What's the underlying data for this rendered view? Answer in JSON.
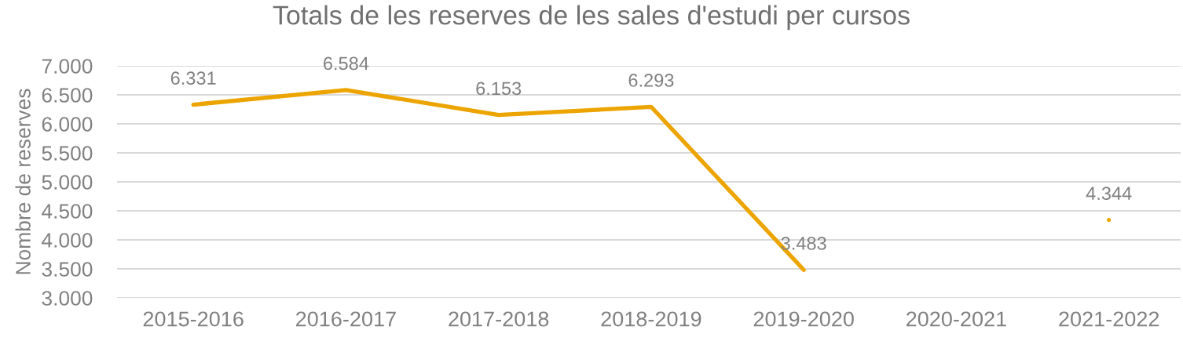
{
  "chart_data": {
    "type": "line",
    "title": "Totals de les reserves de les sales d'estudi per cursos",
    "ylabel": "Nombre de reserves",
    "categories": [
      "2015-2016",
      "2016-2017",
      "2017-2018",
      "2018-2019",
      "2019-2020",
      "2020-2021",
      "2021-2022"
    ],
    "series": [
      {
        "color": "#eca500",
        "values": [
          6331,
          6584,
          6153,
          6293,
          3483,
          null,
          4344
        ],
        "value_labels": [
          "6.331",
          "6.584",
          "6.153",
          "6.293",
          "3.483",
          null,
          "4.344"
        ]
      }
    ],
    "ylim": [
      3000,
      7000
    ],
    "yticks": [
      {
        "value": 3000,
        "label": "3.000"
      },
      {
        "value": 3500,
        "label": "3.500"
      },
      {
        "value": 4000,
        "label": "4.000"
      },
      {
        "value": 4500,
        "label": "4.500"
      },
      {
        "value": 5000,
        "label": "5.000"
      },
      {
        "value": 5500,
        "label": "5.500"
      },
      {
        "value": 6000,
        "label": "6.000"
      },
      {
        "value": 6500,
        "label": "6.500"
      },
      {
        "value": 7000,
        "label": "7.000"
      }
    ],
    "grid": "y",
    "marker": "none",
    "line_style": "solid"
  }
}
